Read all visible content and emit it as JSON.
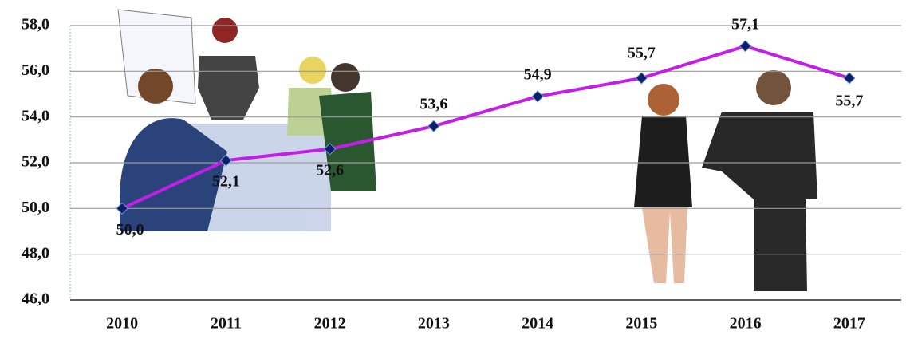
{
  "chart_data": {
    "type": "line",
    "categories": [
      "2010",
      "2011",
      "2012",
      "2013",
      "2014",
      "2015",
      "2016",
      "2017"
    ],
    "values": [
      50.0,
      52.1,
      52.6,
      53.6,
      54.9,
      55.7,
      57.1,
      55.7
    ],
    "value_labels": [
      "50,0",
      "52,1",
      "52,6",
      "53,6",
      "54,9",
      "55,7",
      "57,1",
      "55,7"
    ],
    "color": "#c21ee8",
    "marker_color": "#0d1f6b",
    "ylim": [
      46,
      58
    ],
    "yticks": [
      {
        "value": 46,
        "label": "46,0"
      },
      {
        "value": 48,
        "label": "48,0"
      },
      {
        "value": 50,
        "label": "50,0"
      },
      {
        "value": 52,
        "label": "52,0"
      },
      {
        "value": 54,
        "label": "54,0"
      },
      {
        "value": 56,
        "label": "56,0"
      },
      {
        "value": 58,
        "label": "58,0"
      }
    ],
    "grid": true
  }
}
